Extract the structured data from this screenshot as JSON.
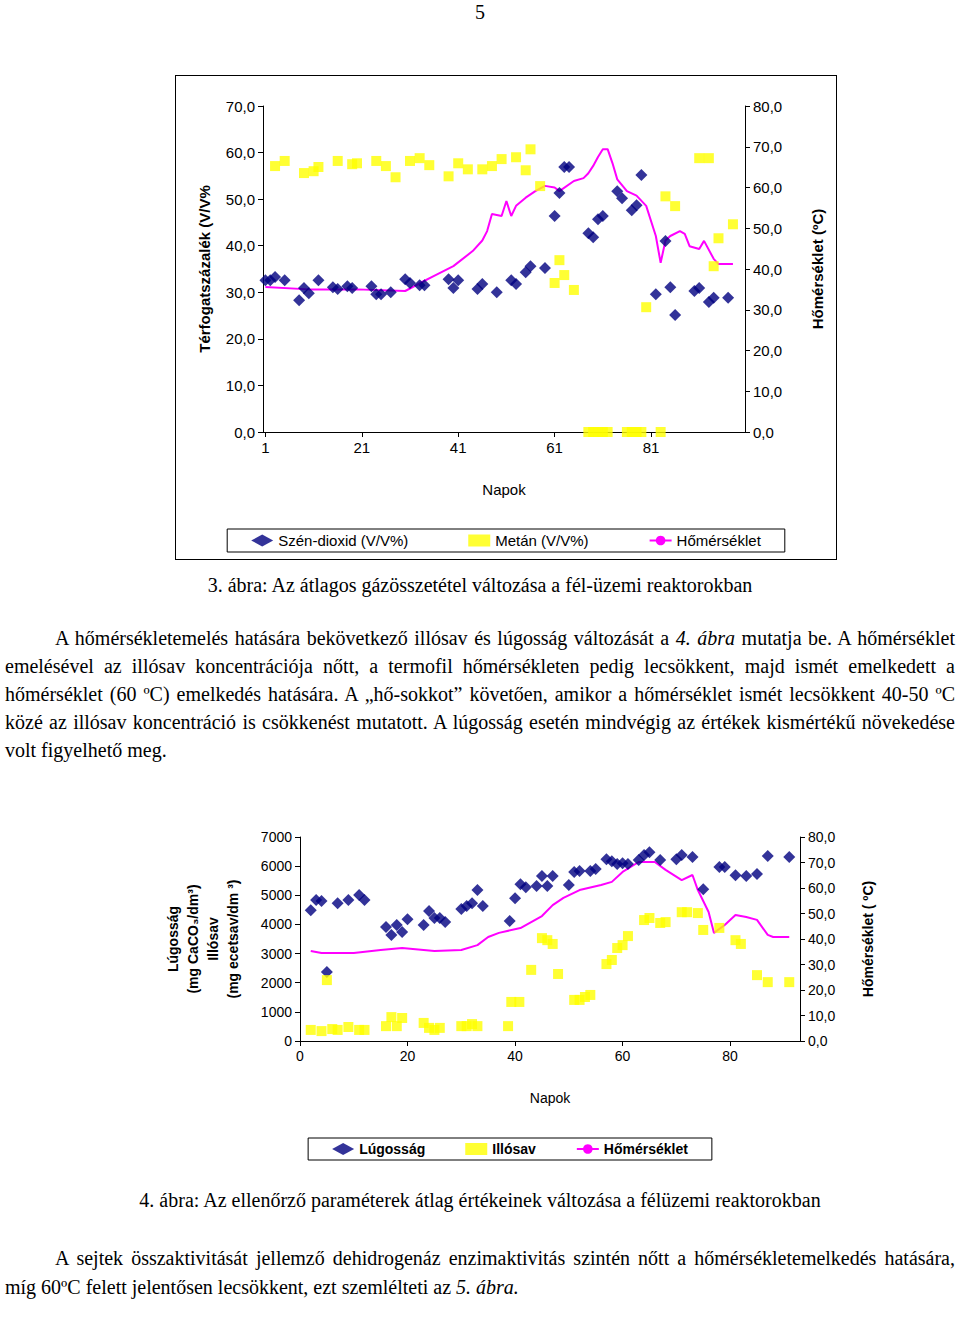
{
  "document": {
    "page_number": "5",
    "captions": [
      "3. ábra: Az átlagos gázösszetétel változása a fél-üzemi reaktorokban",
      "4. ábra: Az ellenőrző paraméterek átlag értékeinek változása a félüzemi reaktorokban"
    ],
    "paragraphs": [
      [
        {
          "text": "A hőmérsékletemelés hatására bekövetkező illósav és lúgosság változását a "
        },
        {
          "text": "4. ábra",
          "italic": true
        },
        {
          "text": " mutatja be. A hőmérséklet emelésével az illósav koncentrációja nőtt, a termofil hőmérsékleten pedig lecsökkent, majd ismét emelkedett a hőmérséklet (60 ºC) emelkedés hatására. A „hő-sokkot” követően, amikor a hőmérséklet ismét lecsökkent 40-50 ºC közé az illósav koncentráció is csökkenést mutatott. A lúgosság esetén mindvégig az értékek kismértékű növekedése volt figyelhető meg."
        }
      ],
      [
        {
          "text": "A sejtek összaktivitását jellemző dehidrogenáz enzimaktivitás szintén nőtt a hőmérsékletemelkedés hatására, míg 60ºC felett jelentősen lecsökkent, ezt szemlélteti az "
        },
        {
          "text": "5. ábra.",
          "italic": true
        }
      ]
    ]
  },
  "chart_data": [
    {
      "type": "scatter",
      "xlabel": "Napok",
      "ylabel": [
        "Térfogatszázalék (V/V%"
      ],
      "y2label": "Hőmérséklet (ºC)",
      "xlim": [
        0.5,
        100.5
      ],
      "xticks": [
        1,
        21,
        41,
        61,
        81
      ],
      "ylim": [
        0,
        70
      ],
      "yticks": [
        {
          "value": 0,
          "label": "0,0"
        },
        {
          "value": 10,
          "label": "10,0"
        },
        {
          "value": 20,
          "label": "20,0"
        },
        {
          "value": 30,
          "label": "30,0"
        },
        {
          "value": 40,
          "label": "40,0"
        },
        {
          "value": 50,
          "label": "50,0"
        },
        {
          "value": 60,
          "label": "60,0"
        },
        {
          "value": 70,
          "label": "70,0"
        }
      ],
      "y2lim": [
        0,
        80
      ],
      "y2ticks": [
        {
          "value": 0,
          "label": "0,0"
        },
        {
          "value": 10,
          "label": "10,0"
        },
        {
          "value": 20,
          "label": "20,0"
        },
        {
          "value": 30,
          "label": "30,0"
        },
        {
          "value": 40,
          "label": "40,0"
        },
        {
          "value": 50,
          "label": "50,0"
        },
        {
          "value": 60,
          "label": "60,0"
        },
        {
          "value": 70,
          "label": "70,0"
        },
        {
          "value": 80,
          "label": "80,0"
        }
      ],
      "grid": false,
      "legend": "bottom",
      "series": [
        {
          "name": "Szén-dioxid (V/V%)",
          "type": "scatter",
          "marker": "diamond",
          "color": "#000080",
          "x": [
            1,
            2,
            3,
            5,
            8,
            9,
            10,
            12,
            15,
            16,
            18,
            19,
            23,
            24,
            25,
            27,
            30,
            31,
            33,
            34,
            39,
            40,
            41,
            45,
            46,
            49,
            52,
            53,
            55,
            56,
            59,
            61,
            62,
            63,
            64,
            68,
            69,
            70,
            71,
            74,
            75,
            77,
            78,
            79,
            82,
            84,
            85,
            86,
            90,
            91,
            93,
            94,
            97
          ],
          "values": [
            32.6,
            32.6,
            33.3,
            32.6,
            28.3,
            30.9,
            29.8,
            32.6,
            31.1,
            30.7,
            31.3,
            30.9,
            31.3,
            29.6,
            29.6,
            30.0,
            32.8,
            32.0,
            31.5,
            31.5,
            32.8,
            30.9,
            32.6,
            30.7,
            31.8,
            30.0,
            32.6,
            31.8,
            34.3,
            35.6,
            35.2,
            46.4,
            51.3,
            56.9,
            56.9,
            42.7,
            41.8,
            45.7,
            46.4,
            51.7,
            50.2,
            47.6,
            48.7,
            55.2,
            29.6,
            41.0,
            31.1,
            25.1,
            30.3,
            30.9,
            27.9,
            28.8,
            28.8
          ]
        },
        {
          "name": "Metán (V/V%)",
          "type": "scatter",
          "marker": "square",
          "color": "#ffff00",
          "x": [
            3,
            5,
            9,
            11,
            12,
            16,
            19,
            20,
            24,
            26,
            28,
            31,
            33,
            35,
            39,
            41,
            43,
            46,
            48,
            50,
            53,
            55,
            56,
            58,
            61,
            62,
            63,
            65,
            68,
            69,
            70,
            71,
            72,
            76,
            77,
            78,
            79,
            80,
            83,
            84,
            86,
            91,
            93,
            94,
            95,
            98
          ],
          "values": [
            57.1,
            58.2,
            55.6,
            56.0,
            56.9,
            58.2,
            57.5,
            57.7,
            58.2,
            57.1,
            54.7,
            58.2,
            58.8,
            57.3,
            54.9,
            57.7,
            56.4,
            56.4,
            57.1,
            58.6,
            59.0,
            56.2,
            60.7,
            52.8,
            32.0,
            36.9,
            33.7,
            30.5,
            0,
            0,
            0,
            0,
            0,
            0,
            0,
            0,
            0,
            26.8,
            0,
            50.6,
            48.5,
            58.8,
            58.8,
            35.6,
            41.6,
            44.6
          ]
        },
        {
          "name": "Hőmérséklet",
          "type": "line",
          "color": "#ff00ff",
          "axis": "y2",
          "x": [
            1,
            10,
            20,
            30,
            33,
            36,
            40,
            44,
            46,
            47,
            48,
            50,
            51,
            52,
            53,
            55,
            57,
            59,
            61,
            62,
            65,
            67,
            68,
            69,
            70,
            71,
            72,
            73,
            74,
            76,
            78,
            80,
            82,
            83,
            84,
            85,
            87,
            88,
            89,
            91,
            92,
            94,
            95,
            98
          ],
          "values": [
            35.6,
            35.0,
            35.0,
            34.6,
            36.5,
            38.3,
            40.7,
            44.4,
            47.0,
            49.3,
            53.5,
            53.0,
            56.7,
            53.0,
            55.5,
            57.5,
            59.1,
            60.4,
            60.0,
            59.1,
            61.6,
            62.3,
            63.5,
            65.3,
            67.5,
            69.4,
            69.4,
            66.0,
            62.0,
            59.1,
            58.0,
            55.5,
            48.1,
            41.5,
            47.0,
            48.1,
            49.3,
            48.6,
            45.6,
            44.9,
            46.9,
            42.5,
            41.2,
            41.2
          ]
        }
      ]
    },
    {
      "type": "scatter",
      "xlabel": "Napok",
      "ylabel": [
        "Lúgosság",
        "(mg CaCO₃/dm³)",
        "Illósav",
        "(mg ecetsav/dm ³)"
      ],
      "y2label": "Hőmérséklet ( ºC)",
      "xlim": [
        0,
        93
      ],
      "xticks": [
        0,
        20,
        40,
        60,
        80
      ],
      "ylim": [
        0,
        7000
      ],
      "yticks": [
        0,
        1000,
        2000,
        3000,
        4000,
        5000,
        6000,
        7000
      ],
      "y2lim": [
        0,
        80
      ],
      "y2ticks": [
        {
          "value": 0,
          "label": "0,0"
        },
        {
          "value": 10,
          "label": "10,0"
        },
        {
          "value": 20,
          "label": "20,0"
        },
        {
          "value": 30,
          "label": "30,0"
        },
        {
          "value": 40,
          "label": "40,0"
        },
        {
          "value": 50,
          "label": "50,0"
        },
        {
          "value": 60,
          "label": "60,0"
        },
        {
          "value": 70,
          "label": "70,0"
        },
        {
          "value": 80,
          "label": "80,0"
        }
      ],
      "grid": false,
      "legend": "bottom",
      "series": [
        {
          "name": "Lúgosság",
          "type": "scatter",
          "marker": "diamond",
          "color": "#000080",
          "x": [
            2,
            3,
            4,
            5,
            7,
            9,
            11,
            12,
            16,
            17,
            18,
            19,
            20,
            23,
            24,
            25,
            26,
            27,
            30,
            31,
            32,
            33,
            34,
            39,
            40,
            41,
            42,
            44,
            45,
            46,
            47,
            50,
            51,
            52,
            54,
            55,
            57,
            58,
            59,
            60,
            61,
            63,
            64,
            65,
            67,
            70,
            71,
            73,
            75,
            78,
            79,
            81,
            83,
            85,
            87,
            91
          ],
          "values": [
            4490,
            4840,
            4800,
            2370,
            4730,
            4840,
            5010,
            4840,
            3910,
            3640,
            3980,
            3740,
            4180,
            3980,
            4460,
            4220,
            4220,
            4080,
            4530,
            4630,
            4730,
            5180,
            4630,
            4120,
            4900,
            5380,
            5280,
            5320,
            5660,
            5320,
            5660,
            5350,
            5800,
            5830,
            5830,
            5900,
            6240,
            6170,
            6070,
            6100,
            6070,
            6210,
            6380,
            6480,
            6210,
            6240,
            6380,
            6310,
            5210,
            5970,
            5970,
            5690,
            5660,
            5730,
            6350,
            6310
          ]
        },
        {
          "name": "Illósav",
          "type": "scatter",
          "marker": "square",
          "color": "#ffff00",
          "x": [
            2,
            4,
            5,
            6,
            7,
            9,
            11,
            12,
            16,
            17,
            18,
            19,
            23,
            24,
            25,
            26,
            30,
            31,
            32,
            33,
            38.7,
            39.3,
            40.8,
            43,
            45,
            46,
            47,
            48,
            51,
            52,
            53,
            54,
            57,
            58,
            59,
            60,
            61,
            64,
            65,
            67,
            68,
            71,
            72,
            74,
            75,
            78,
            81,
            82,
            85,
            87,
            91
          ],
          "values": [
            380,
            340,
            2090,
            410,
            380,
            480,
            380,
            380,
            510,
            820,
            510,
            790,
            620,
            450,
            380,
            450,
            510,
            510,
            580,
            510,
            510,
            1340,
            1340,
            2440,
            3530,
            3460,
            3330,
            2300,
            1410,
            1410,
            1510,
            1580,
            2640,
            2780,
            3190,
            3290,
            3600,
            4150,
            4220,
            4050,
            4080,
            4420,
            4420,
            4390,
            3810,
            3880,
            3460,
            3330,
            2260,
            2020,
            2020
          ]
        },
        {
          "name": "Hőmérséklet",
          "type": "line",
          "color": "#ff00ff",
          "axis": "y2",
          "x": [
            2,
            4,
            10,
            15,
            19,
            25,
            30,
            33,
            35,
            37,
            41,
            45,
            47,
            49,
            52,
            56,
            58,
            60,
            63,
            66,
            68,
            71,
            73,
            74,
            76,
            77,
            79,
            81,
            83,
            85,
            87,
            88,
            91
          ],
          "values": [
            35.3,
            34.5,
            34.5,
            35.7,
            36.5,
            35.3,
            35.7,
            37.6,
            40.8,
            42.4,
            44.3,
            49.0,
            53.3,
            56.1,
            59.2,
            61.2,
            62.4,
            66.3,
            70.2,
            70.2,
            67.1,
            63.1,
            65.1,
            59.2,
            50.6,
            42.4,
            45.5,
            49.4,
            48.6,
            47.5,
            41.6,
            40.8,
            40.8
          ]
        }
      ]
    }
  ]
}
